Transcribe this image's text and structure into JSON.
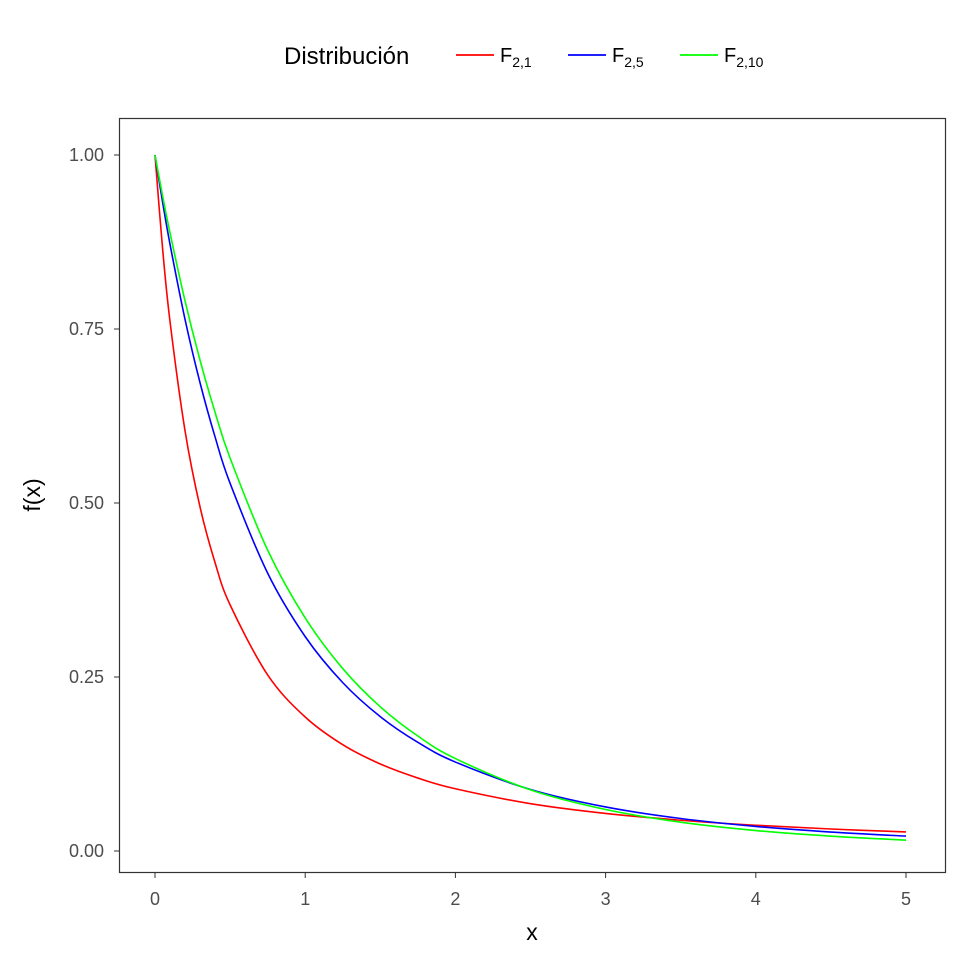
{
  "chart_data": {
    "type": "line",
    "title": "",
    "xlabel": "x",
    "ylabel": "f(x)",
    "xlim": [
      0,
      5
    ],
    "ylim": [
      0,
      1
    ],
    "x_ticks": [
      "0",
      "1",
      "2",
      "3",
      "4",
      "5"
    ],
    "y_ticks": [
      "0.00",
      "0.25",
      "0.50",
      "0.75",
      "1.00"
    ],
    "grid": false,
    "legend": {
      "title": "Distribución",
      "placement": "top"
    },
    "x": [
      0,
      0.05,
      0.1,
      0.2,
      0.3,
      0.4,
      0.5,
      0.75,
      1,
      1.25,
      1.5,
      1.75,
      2,
      2.5,
      3,
      3.5,
      4,
      4.5,
      5
    ],
    "series": [
      {
        "name": "F",
        "sub": "2,1",
        "color": "#ff0000",
        "values": [
          1,
          0.8668,
          0.7607,
          0.6037,
          0.4941,
          0.4141,
          0.3536,
          0.253,
          0.1925,
          0.1527,
          0.125,
          0.1048,
          0.0894,
          0.068,
          0.054,
          0.0442,
          0.037,
          0.0316,
          0.0274
        ]
      },
      {
        "name": "F",
        "sub": "2,5",
        "color": "#0000ff",
        "values": [
          1,
          0.933,
          0.8717,
          0.7638,
          0.6726,
          0.5949,
          0.5283,
          0.3992,
          0.308,
          0.2419,
          0.193,
          0.1561,
          0.1278,
          0.0884,
          0.0633,
          0.0467,
          0.0353,
          0.0272,
          0.0214
        ]
      },
      {
        "name": "F",
        "sub": "2,10",
        "color": "#00ff00",
        "values": [
          1,
          0.942,
          0.888,
          0.7903,
          0.705,
          0.6302,
          0.5645,
          0.4323,
          0.3349,
          0.2621,
          0.2072,
          0.1652,
          0.1328,
          0.0878,
          0.0596,
          0.0414,
          0.0294,
          0.0213,
          0.0156
        ]
      }
    ]
  }
}
